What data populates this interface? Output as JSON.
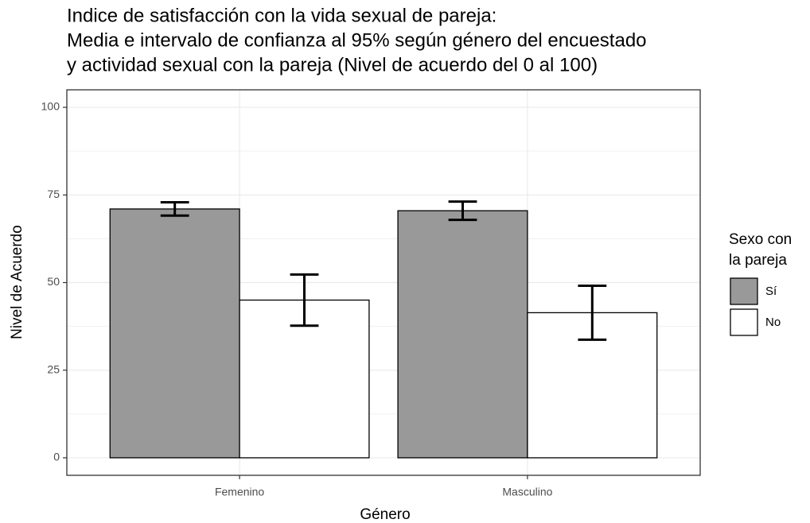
{
  "chart_data": {
    "type": "bar",
    "title": [
      "Indice de satisfacción con la vida sexual de pareja:",
      "Media e intervalo de confianza al 95% según género del encuestado",
      "y actividad sexual con la pareja (Nivel de acuerdo del 0 al 100)"
    ],
    "x_label": "Género",
    "y_label": "Nivel de Acuerdo",
    "categories": [
      "Femenino",
      "Masculino"
    ],
    "legend_title": [
      "Sexo con",
      "la pareja"
    ],
    "series": [
      {
        "name": "Sí",
        "color": "#999999",
        "values": [
          71,
          70.5
        ],
        "errors": [
          1.9,
          2.6
        ]
      },
      {
        "name": "No",
        "color": "#ffffff",
        "values": [
          45,
          41.4
        ],
        "errors": [
          7.3,
          7.7
        ]
      }
    ],
    "ylim": [
      -5,
      105
    ],
    "yticks": [
      0,
      25,
      50,
      75,
      100
    ],
    "y_minor_ticks": [
      12.5,
      37.5,
      62.5,
      87.5
    ],
    "grid": true,
    "legend": "right"
  }
}
